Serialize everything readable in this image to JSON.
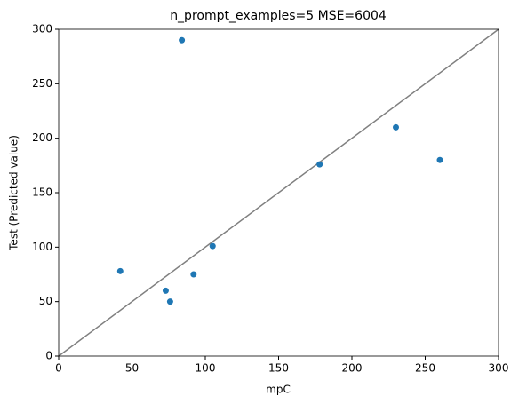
{
  "chart_data": {
    "type": "scatter",
    "title": "n_prompt_examples=5 MSE=6004",
    "x_label": "mpC",
    "y_label": "Test (Predicted value)",
    "series": [
      {
        "color": "#1f77b4",
        "x": [
          84,
          42,
          73,
          76,
          92,
          105,
          178,
          230,
          260
        ],
        "values": [
          290,
          78,
          60,
          50,
          75,
          101,
          176,
          210,
          180
        ]
      }
    ],
    "xlim": [
      0,
      300
    ],
    "ylim": [
      0,
      300
    ],
    "xticks": [
      0,
      50,
      100,
      150,
      200,
      250,
      300
    ],
    "yticks": [
      0,
      50,
      100,
      150,
      200,
      250,
      300
    ],
    "diagonal_color": "#808080"
  }
}
